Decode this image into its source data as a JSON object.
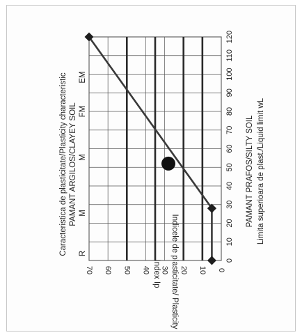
{
  "chart_data": {
    "type": "line",
    "title": "Caracteristica de plasticitate/Plasticity characteristic",
    "subtitle": "PAMANT ARGILOS/CLAYEY SOIL",
    "class_labels": [
      "R",
      "M",
      "M",
      "FM",
      "EM"
    ],
    "xlabel": "Limita superioara de plast./Liquid limit wL",
    "xlabel_top": "PAMANT PRAFOS/SILTY SOIL",
    "ylabel": "Indicele de plasticitate/ Plasticity",
    "ylabel2": "Index Ip",
    "x_ticks": [
      0,
      10,
      20,
      30,
      40,
      50,
      60,
      70,
      80,
      90,
      100,
      110,
      120
    ],
    "y_ticks": [
      0,
      10,
      20,
      30,
      40,
      50,
      60,
      70
    ],
    "xlim": [
      0,
      120
    ],
    "ylim": [
      0,
      70
    ],
    "grid": true,
    "class_boundaries_y": [
      10,
      20,
      35,
      50
    ],
    "series": [
      {
        "values_x": [
          0,
          28,
          28,
          120
        ],
        "values_y": [
          5,
          5,
          5,
          70
        ],
        "marker": "diamond"
      }
    ],
    "point": {
      "x": 52,
      "y": 28
    },
    "colors": {
      "line": "#3a3a3a",
      "grid": "#555555",
      "axis": "#222222"
    }
  }
}
